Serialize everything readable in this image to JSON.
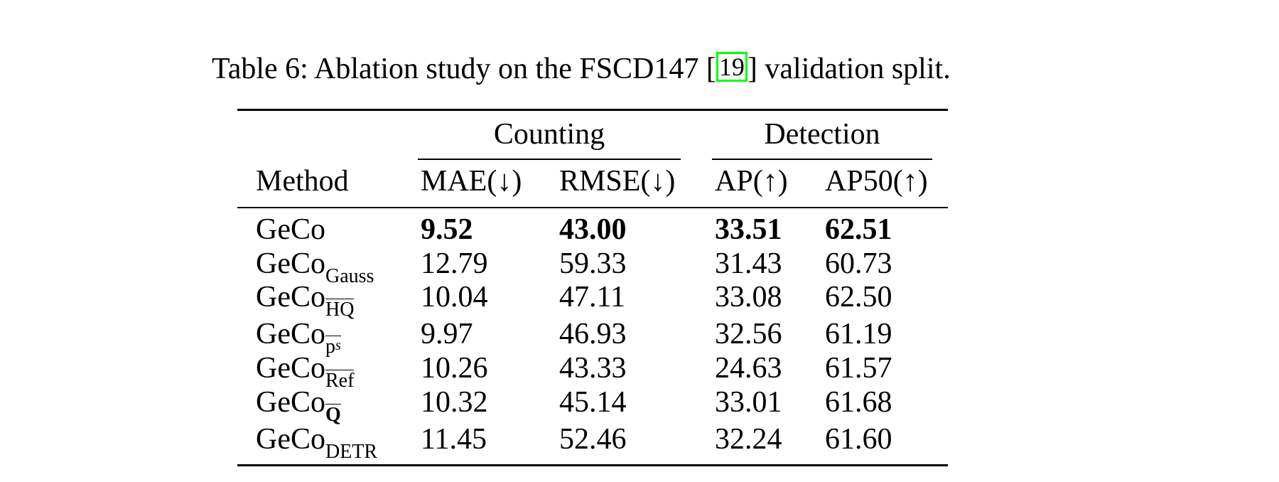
{
  "caption": {
    "prefix": "Table 6: Ablation study on the FSCD147 [",
    "citation": "19",
    "suffix": "] validation split."
  },
  "table": {
    "group_headers": {
      "counting": "Counting",
      "detection": "Detection"
    },
    "column_headers": {
      "method": "Method",
      "mae": "MAE(↓)",
      "rmse": "RMSE(↓)",
      "ap": "AP(↑)",
      "ap50": "AP50(↑)"
    },
    "rows": [
      {
        "base": "GeCo",
        "sub": "",
        "sup": "",
        "mae": "9.52",
        "rmse": "43.00",
        "ap": "33.51",
        "ap50": "62.51"
      },
      {
        "base": "GeCo",
        "sub": "Gauss",
        "sup": "",
        "mae": "12.79",
        "rmse": "59.33",
        "ap": "31.43",
        "ap50": "60.73"
      },
      {
        "base": "GeCo",
        "sub": "HQ",
        "sup": "",
        "mae": "10.04",
        "rmse": "47.11",
        "ap": "33.08",
        "ap50": "62.50"
      },
      {
        "base": "GeCo",
        "sub": "p",
        "sup": "s",
        "mae": "9.97",
        "rmse": "46.93",
        "ap": "32.56",
        "ap50": "61.19"
      },
      {
        "base": "GeCo",
        "sub": "Ref",
        "sup": "",
        "mae": "10.26",
        "rmse": "43.33",
        "ap": "24.63",
        "ap50": "61.57"
      },
      {
        "base": "GeCo",
        "sub": "Q",
        "sup": "",
        "mae": "10.32",
        "rmse": "45.14",
        "ap": "33.01",
        "ap50": "61.68"
      },
      {
        "base": "GeCo",
        "sub": "DETR",
        "sup": "",
        "mae": "11.45",
        "rmse": "52.46",
        "ap": "32.24",
        "ap50": "61.60"
      }
    ]
  }
}
